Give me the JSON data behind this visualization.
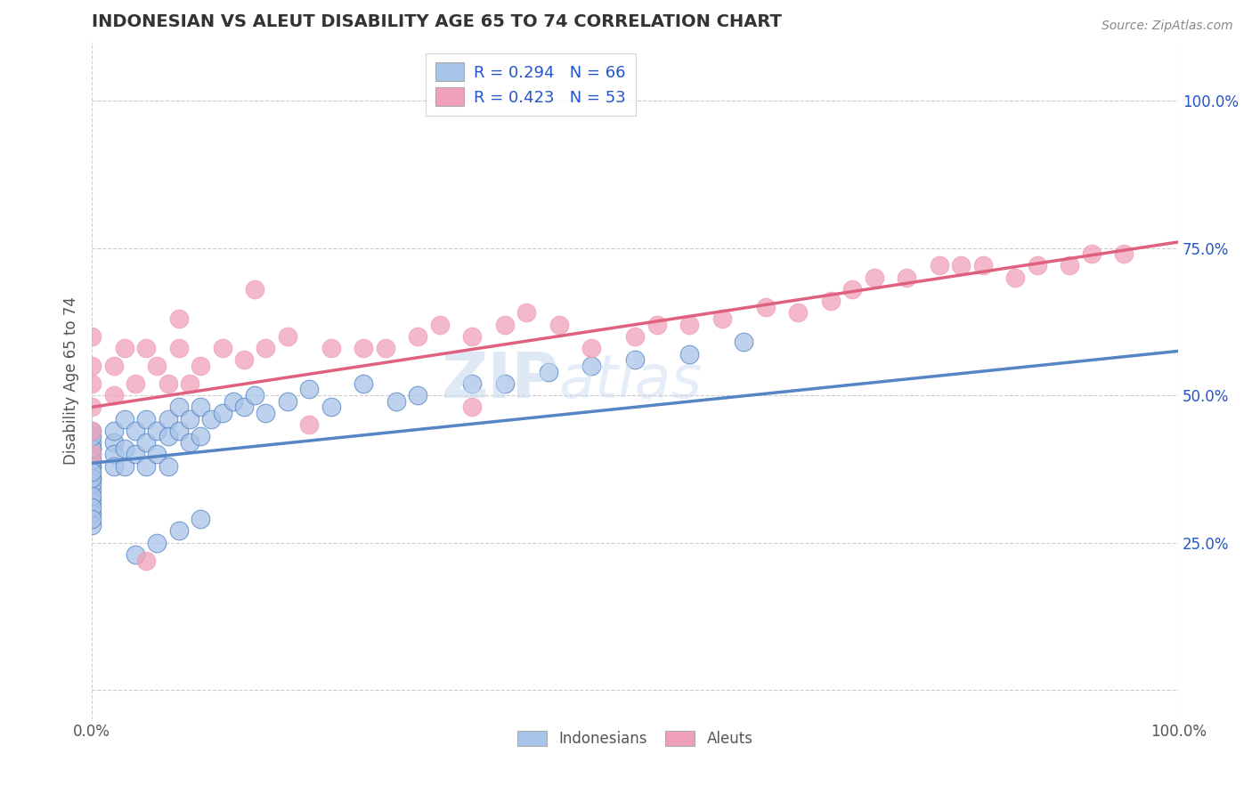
{
  "title": "INDONESIAN VS ALEUT DISABILITY AGE 65 TO 74 CORRELATION CHART",
  "source": "Source: ZipAtlas.com",
  "ylabel": "Disability Age 65 to 74",
  "xlim": [
    0.0,
    1.0
  ],
  "ylim": [
    -0.05,
    1.1
  ],
  "ytick_vals": [
    0.0,
    0.25,
    0.5,
    0.75,
    1.0
  ],
  "ytick_labels": [
    "",
    "25.0%",
    "50.0%",
    "75.0%",
    "100.0%"
  ],
  "color_indonesian": "#a8c4e8",
  "color_aleut": "#f0a0b8",
  "trend_color_indonesian": "#5585c5",
  "trend_color_aleut": "#e06080",
  "background_color": "#ffffff",
  "grid_color": "#cccccc",
  "title_color": "#333333",
  "axis_label_color": "#555555",
  "legend_text_color": "#2255cc",
  "source_color": "#888888",
  "watermark": "ZIPatlas",
  "indonesian_x": [
    0.0,
    0.0,
    0.0,
    0.0,
    0.0,
    0.0,
    0.0,
    0.0,
    0.0,
    0.0,
    0.0,
    0.0,
    0.0,
    0.0,
    0.0,
    0.0,
    0.0,
    0.0,
    0.0,
    0.0,
    0.02,
    0.02,
    0.02,
    0.02,
    0.03,
    0.03,
    0.03,
    0.04,
    0.04,
    0.05,
    0.05,
    0.05,
    0.06,
    0.06,
    0.07,
    0.07,
    0.07,
    0.08,
    0.08,
    0.09,
    0.09,
    0.1,
    0.1,
    0.11,
    0.12,
    0.13,
    0.14,
    0.15,
    0.16,
    0.18,
    0.2,
    0.22,
    0.25,
    0.28,
    0.3,
    0.35,
    0.38,
    0.42,
    0.46,
    0.5,
    0.55,
    0.6,
    0.1,
    0.08,
    0.06,
    0.04
  ],
  "indonesian_y": [
    0.38,
    0.4,
    0.41,
    0.42,
    0.38,
    0.36,
    0.34,
    0.32,
    0.3,
    0.28,
    0.35,
    0.33,
    0.36,
    0.39,
    0.41,
    0.43,
    0.44,
    0.37,
    0.31,
    0.29,
    0.42,
    0.4,
    0.38,
    0.44,
    0.46,
    0.41,
    0.38,
    0.44,
    0.4,
    0.46,
    0.42,
    0.38,
    0.44,
    0.4,
    0.46,
    0.43,
    0.38,
    0.48,
    0.44,
    0.46,
    0.42,
    0.48,
    0.43,
    0.46,
    0.47,
    0.49,
    0.48,
    0.5,
    0.47,
    0.49,
    0.51,
    0.48,
    0.52,
    0.49,
    0.5,
    0.52,
    0.52,
    0.54,
    0.55,
    0.56,
    0.57,
    0.59,
    0.29,
    0.27,
    0.25,
    0.23
  ],
  "aleut_x": [
    0.0,
    0.0,
    0.0,
    0.0,
    0.0,
    0.0,
    0.02,
    0.02,
    0.03,
    0.04,
    0.05,
    0.06,
    0.07,
    0.08,
    0.09,
    0.1,
    0.12,
    0.14,
    0.16,
    0.18,
    0.2,
    0.22,
    0.25,
    0.27,
    0.3,
    0.32,
    0.35,
    0.38,
    0.4,
    0.43,
    0.46,
    0.5,
    0.52,
    0.55,
    0.58,
    0.62,
    0.65,
    0.68,
    0.7,
    0.72,
    0.75,
    0.78,
    0.8,
    0.82,
    0.85,
    0.87,
    0.9,
    0.92,
    0.95,
    0.15,
    0.08,
    0.05,
    0.35
  ],
  "aleut_y": [
    0.48,
    0.52,
    0.55,
    0.6,
    0.44,
    0.4,
    0.55,
    0.5,
    0.58,
    0.52,
    0.58,
    0.55,
    0.52,
    0.58,
    0.52,
    0.55,
    0.58,
    0.56,
    0.58,
    0.6,
    0.45,
    0.58,
    0.58,
    0.58,
    0.6,
    0.62,
    0.6,
    0.62,
    0.64,
    0.62,
    0.58,
    0.6,
    0.62,
    0.62,
    0.63,
    0.65,
    0.64,
    0.66,
    0.68,
    0.7,
    0.7,
    0.72,
    0.72,
    0.72,
    0.7,
    0.72,
    0.72,
    0.74,
    0.74,
    0.68,
    0.63,
    0.22,
    0.48
  ],
  "indo_trend_x0": 0.0,
  "indo_trend_y0": 0.385,
  "indo_trend_x1": 1.0,
  "indo_trend_y1": 0.575,
  "aleut_trend_x0": 0.0,
  "aleut_trend_y0": 0.48,
  "aleut_trend_x1": 1.0,
  "aleut_trend_y1": 0.76
}
